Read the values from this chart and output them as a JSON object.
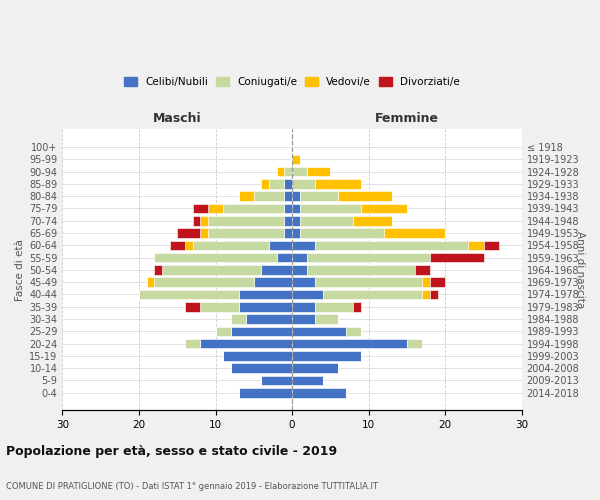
{
  "age_groups": [
    "0-4",
    "5-9",
    "10-14",
    "15-19",
    "20-24",
    "25-29",
    "30-34",
    "35-39",
    "40-44",
    "45-49",
    "50-54",
    "55-59",
    "60-64",
    "65-69",
    "70-74",
    "75-79",
    "80-84",
    "85-89",
    "90-94",
    "95-99",
    "100+"
  ],
  "birth_years": [
    "2014-2018",
    "2009-2013",
    "2004-2008",
    "1999-2003",
    "1994-1998",
    "1989-1993",
    "1984-1988",
    "1979-1983",
    "1974-1978",
    "1969-1973",
    "1964-1968",
    "1959-1963",
    "1954-1958",
    "1949-1953",
    "1944-1948",
    "1939-1943",
    "1934-1938",
    "1929-1933",
    "1924-1928",
    "1919-1923",
    "≤ 1918"
  ],
  "colors": {
    "celibi": "#4472c4",
    "coniugati": "#c5d9a0",
    "vedovi": "#ffc000",
    "divorziati": "#c0141c"
  },
  "males": {
    "celibi": [
      7,
      4,
      8,
      9,
      12,
      8,
      6,
      7,
      7,
      5,
      4,
      2,
      3,
      1,
      1,
      1,
      1,
      1,
      0,
      0,
      0
    ],
    "coniugati": [
      0,
      0,
      0,
      0,
      2,
      2,
      2,
      5,
      13,
      13,
      13,
      16,
      10,
      10,
      10,
      8,
      4,
      2,
      1,
      0,
      0
    ],
    "vedovi": [
      0,
      0,
      0,
      0,
      0,
      0,
      0,
      0,
      0,
      1,
      0,
      0,
      1,
      1,
      1,
      2,
      2,
      1,
      1,
      0,
      0
    ],
    "divorziati": [
      0,
      0,
      0,
      0,
      0,
      0,
      0,
      2,
      0,
      0,
      1,
      0,
      2,
      3,
      1,
      2,
      0,
      0,
      0,
      0,
      0
    ]
  },
  "females": {
    "celibi": [
      7,
      4,
      6,
      9,
      15,
      7,
      3,
      3,
      4,
      3,
      2,
      2,
      3,
      1,
      1,
      1,
      1,
      0,
      0,
      0,
      0
    ],
    "coniugati": [
      0,
      0,
      0,
      0,
      2,
      2,
      3,
      5,
      13,
      14,
      14,
      16,
      20,
      11,
      7,
      8,
      5,
      3,
      2,
      0,
      0
    ],
    "vedovi": [
      0,
      0,
      0,
      0,
      0,
      0,
      0,
      0,
      1,
      1,
      0,
      0,
      2,
      8,
      5,
      6,
      7,
      6,
      3,
      1,
      0
    ],
    "divorziati": [
      0,
      0,
      0,
      0,
      0,
      0,
      0,
      1,
      1,
      2,
      2,
      7,
      2,
      0,
      0,
      0,
      0,
      0,
      0,
      0,
      0
    ]
  },
  "title": "Popolazione per età, sesso e stato civile - 2019",
  "subtitle": "COMUNE DI PRATIGLIONE (TO) - Dati ISTAT 1° gennaio 2019 - Elaborazione TUTTITALIA.IT",
  "xlabel_left": "Maschi",
  "xlabel_right": "Femmine",
  "ylabel_left": "Fasce di età",
  "ylabel_right": "Anni di nascita",
  "legend_labels": [
    "Celibi/Nubili",
    "Coniugati/e",
    "Vedovi/e",
    "Divorziati/e"
  ],
  "xlim": 30,
  "bg_color": "#f0f0f0",
  "plot_bg": "#ffffff",
  "grid_color": "#cccccc"
}
